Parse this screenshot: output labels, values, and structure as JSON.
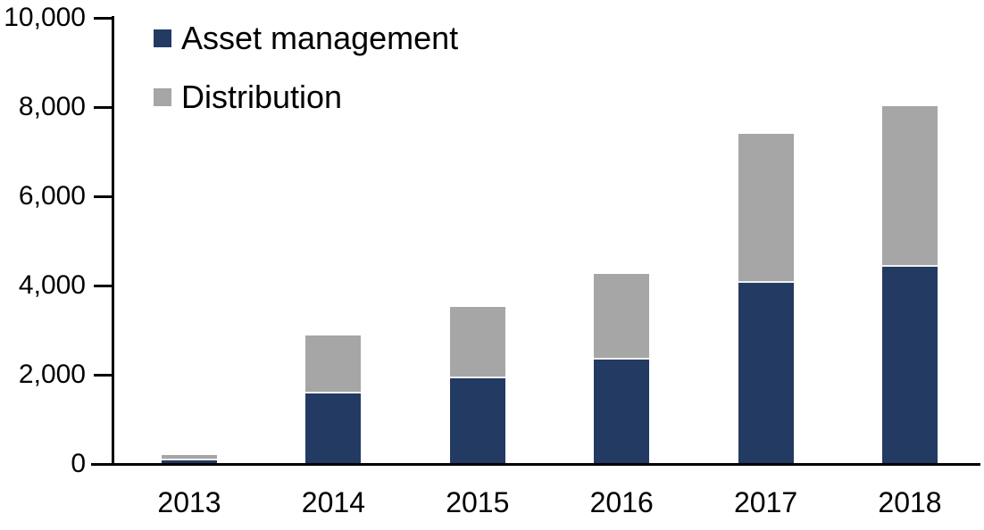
{
  "chart_data": {
    "type": "bar",
    "stacked": true,
    "title": "",
    "xlabel": "",
    "ylabel": "",
    "categories": [
      "2013",
      "2014",
      "2015",
      "2016",
      "2017",
      "2018"
    ],
    "series": [
      {
        "name": "Asset management",
        "color": "#233A63",
        "values": [
          60,
          1570,
          1900,
          2320,
          4040,
          4400
        ]
      },
      {
        "name": "Distribution",
        "color": "#A6A6A6",
        "values": [
          130,
          1300,
          1600,
          1930,
          3340,
          3600
        ]
      }
    ],
    "totals": [
      190,
      2870,
      3500,
      4250,
      7380,
      8000
    ],
    "ylim": [
      0,
      10000
    ],
    "ytick_step": 2000,
    "ytick_labels": [
      "0",
      "2,000",
      "4,000",
      "6,000",
      "8,000",
      "10,000"
    ],
    "legend_position": "top-left",
    "grid": false,
    "axis_color": "#000000",
    "text_color": "#000000",
    "background_color": "#FFFFFF"
  }
}
